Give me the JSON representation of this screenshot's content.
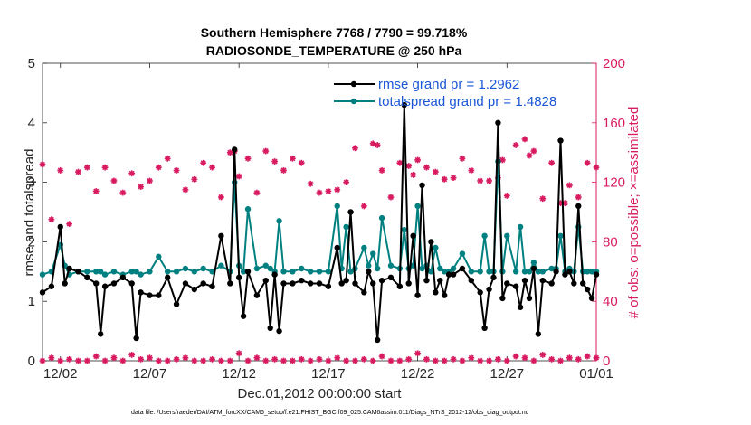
{
  "chart_data": {
    "type": "line",
    "title": "Southern Hemisphere 7768 / 7790 = 99.718%",
    "subtitle": "RADIOSONDE_TEMPERATURE @ 250 hPa",
    "xlabel": "Dec.01,2012 00:00:00 start",
    "ylabel": "rmse and totalspread",
    "ylabel_right": "# of obs: o=possible; ×=assimilated",
    "footnote": "data file: /Users/raeder/DAI/ATM_forcXX/CAM6_setup/f.e21.FHIST_BGC.f09_025.CAM6assim.011/Diags_NTrS_2012-12/obs_diag_output.nc",
    "xlim": [
      0,
      31
    ],
    "ylim": [
      0,
      5
    ],
    "ylim_right": [
      0,
      200
    ],
    "x_tick_labels": [
      "12/02",
      "12/07",
      "12/12",
      "12/17",
      "12/22",
      "12/27",
      "01/01"
    ],
    "x_tick_positions": [
      1,
      6,
      11,
      16,
      21,
      26,
      31
    ],
    "y_tick_labels": [
      "0",
      "1",
      "2",
      "3",
      "4",
      "5"
    ],
    "y_right_tick_labels": [
      "0",
      "40",
      "80",
      "120",
      "160",
      "200"
    ],
    "grid": false,
    "legend": {
      "location": "top-right",
      "entries": [
        "rmse grand pr = 1.2962",
        "totalspread grand pr = 1.4828"
      ]
    },
    "colors": {
      "rmse": "#000000",
      "spread": "#008080",
      "obs": "#d81b60",
      "legend_text": "#1a56d6"
    },
    "rmse": {
      "x": [
        0,
        0.5,
        1,
        1.25,
        1.5,
        2,
        2.5,
        3,
        3.25,
        3.5,
        4,
        4.5,
        5,
        5.25,
        5.5,
        6,
        6.5,
        7,
        7.5,
        8,
        8.5,
        9,
        9.5,
        10,
        10.5,
        10.75,
        11,
        11.25,
        11.5,
        12,
        12.5,
        12.75,
        13,
        13.25,
        13.5,
        14,
        14.5,
        15,
        15.5,
        16,
        16.5,
        16.75,
        17,
        17.25,
        17.5,
        18,
        18.25,
        18.5,
        18.75,
        19,
        19.5,
        20,
        20.25,
        20.5,
        20.75,
        21,
        21.25,
        21.5,
        21.75,
        22,
        22.25,
        22.5,
        22.75,
        23,
        23.5,
        24,
        24.5,
        24.75,
        25,
        25.25,
        25.5,
        25.75,
        26,
        26.5,
        26.75,
        27,
        27.25,
        27.5,
        27.75,
        28,
        28.5,
        28.75,
        29,
        29.25,
        29.5,
        29.75,
        30,
        30.25,
        30.5,
        30.75,
        31
      ],
      "y": [
        1.15,
        1.25,
        2.25,
        1.3,
        1.55,
        1.5,
        1.4,
        1.3,
        0.45,
        1.25,
        1.3,
        1.4,
        1.3,
        0.38,
        1.15,
        1.1,
        1.1,
        1.4,
        0.95,
        1.3,
        1.2,
        1.3,
        1.25,
        2.1,
        1.3,
        3.55,
        1.4,
        0.75,
        1.5,
        1.1,
        1.35,
        0.55,
        1.45,
        0.5,
        1.3,
        1.3,
        1.35,
        1.3,
        1.3,
        1.25,
        1.9,
        1.3,
        1.35,
        2.5,
        1.3,
        1.15,
        1.5,
        1.3,
        0.35,
        1.35,
        1.4,
        1.25,
        4.3,
        1.3,
        2.1,
        1.1,
        2.95,
        1.35,
        2.0,
        1.15,
        1.35,
        1.1,
        1.45,
        1.45,
        1.55,
        1.35,
        1.15,
        0.55,
        1.2,
        1.4,
        4.0,
        1.05,
        1.3,
        1.25,
        0.9,
        1.35,
        1.05,
        1.55,
        0.45,
        1.35,
        1.3,
        1.5,
        3.7,
        1.45,
        1.5,
        1.3,
        2.6,
        1.3,
        1.2,
        1.05,
        1.45
      ]
    },
    "spread": {
      "x": [
        0,
        0.5,
        1,
        1.25,
        1.5,
        2,
        2.5,
        3,
        3.25,
        3.5,
        4,
        4.5,
        5,
        5.25,
        5.5,
        6,
        6.5,
        7,
        7.5,
        8,
        8.5,
        9,
        9.5,
        10,
        10.5,
        10.75,
        11,
        11.25,
        11.5,
        12,
        12.5,
        12.75,
        13,
        13.25,
        13.5,
        14,
        14.5,
        15,
        15.5,
        16,
        16.5,
        16.75,
        17,
        17.25,
        17.5,
        18,
        18.25,
        18.5,
        18.75,
        19,
        19.5,
        20,
        20.25,
        20.5,
        20.75,
        21,
        21.25,
        21.5,
        21.75,
        22,
        22.25,
        22.5,
        22.75,
        23,
        23.5,
        24,
        24.5,
        24.75,
        25,
        25.25,
        25.5,
        25.75,
        26,
        26.5,
        26.75,
        27,
        27.25,
        27.5,
        27.75,
        28,
        28.5,
        28.75,
        29,
        29.25,
        29.5,
        29.75,
        30,
        30.25,
        30.5,
        30.75,
        31
      ],
      "y": [
        1.45,
        1.5,
        1.95,
        1.6,
        1.45,
        1.5,
        1.5,
        1.5,
        1.5,
        1.45,
        1.5,
        1.45,
        1.5,
        1.5,
        1.45,
        1.5,
        1.75,
        1.5,
        1.5,
        1.55,
        1.5,
        1.55,
        1.5,
        1.6,
        1.5,
        3.0,
        1.6,
        1.5,
        2.55,
        1.55,
        1.6,
        1.55,
        1.5,
        2.35,
        1.5,
        1.5,
        1.55,
        1.5,
        1.5,
        1.5,
        2.6,
        1.55,
        2.25,
        1.5,
        1.55,
        1.9,
        1.6,
        1.8,
        1.55,
        2.4,
        1.6,
        1.55,
        2.2,
        1.55,
        1.6,
        2.6,
        1.55,
        1.6,
        1.5,
        1.9,
        1.55,
        1.5,
        1.5,
        1.55,
        1.8,
        1.5,
        1.5,
        2.1,
        1.5,
        1.5,
        3.35,
        1.5,
        2.1,
        1.5,
        2.25,
        1.5,
        1.5,
        1.65,
        1.5,
        1.5,
        1.55,
        1.55,
        2.1,
        1.5,
        1.55,
        1.5,
        2.25,
        1.5,
        1.5,
        1.5,
        1.5
      ]
    },
    "obs_possible": {
      "x": [
        0,
        0.5,
        1,
        1.5,
        2,
        2.5,
        3,
        3.5,
        4,
        4.5,
        5,
        5.5,
        6,
        6.5,
        7,
        7.5,
        8,
        8.5,
        9,
        9.5,
        10,
        10.5,
        10.75,
        11,
        11.5,
        12,
        12.5,
        13,
        13.5,
        14,
        14.5,
        15,
        15.5,
        16,
        16.5,
        17,
        17.5,
        18,
        18.5,
        18.75,
        19,
        19.5,
        20,
        20.5,
        20.75,
        21,
        21.5,
        22,
        22.5,
        23,
        23.5,
        24,
        24.5,
        25,
        25.5,
        25.75,
        26,
        26.5,
        27,
        27.25,
        27.5,
        28,
        28.5,
        29,
        29.25,
        29.5,
        30,
        30.5,
        31
      ],
      "y": [
        132,
        95,
        128,
        92,
        127,
        130,
        114,
        130,
        121,
        113,
        126,
        117,
        121,
        130,
        136,
        128,
        115,
        122,
        133,
        130,
        110,
        140,
        141,
        124,
        136,
        113,
        141,
        134,
        128,
        136,
        133,
        119,
        113,
        114,
        115,
        120,
        143,
        104,
        146,
        145,
        128,
        110,
        133,
        131,
        125,
        135,
        130,
        127,
        122,
        123,
        136,
        128,
        121,
        121,
        123,
        135,
        111,
        145,
        149,
        138,
        141,
        109,
        133,
        106,
        106,
        118,
        110,
        133,
        130
      ]
    },
    "obs_assimilated": {
      "x": [
        0,
        0.5,
        1,
        1.5,
        2,
        2.5,
        3,
        3.5,
        4,
        4.5,
        5,
        5.5,
        6,
        6.5,
        7,
        7.5,
        8,
        8.5,
        9,
        9.5,
        10,
        10.5,
        11,
        11.5,
        12,
        12.5,
        13,
        13.5,
        14,
        14.5,
        15,
        15.5,
        16,
        16.5,
        17,
        17.5,
        18,
        18.5,
        19,
        19.5,
        20,
        20.5,
        21,
        21.5,
        22,
        22.5,
        23,
        23.5,
        24,
        24.5,
        25,
        25.5,
        26,
        26.5,
        27,
        27.5,
        28,
        28.5,
        29,
        29.5,
        30,
        30.5,
        31
      ],
      "y": [
        0,
        2,
        0,
        1,
        0,
        0,
        3,
        0,
        2,
        0,
        4,
        1,
        2,
        0,
        0,
        1,
        2,
        0,
        0,
        1,
        0,
        0,
        5,
        0,
        2,
        0,
        1,
        0,
        0,
        1,
        0,
        1,
        0,
        2,
        0,
        0,
        1,
        0,
        3,
        0,
        0,
        1,
        5,
        1,
        0,
        0,
        1,
        0,
        2,
        0,
        0,
        1,
        0,
        3,
        2,
        0,
        4,
        1,
        0,
        2,
        1,
        3,
        2
      ]
    }
  }
}
